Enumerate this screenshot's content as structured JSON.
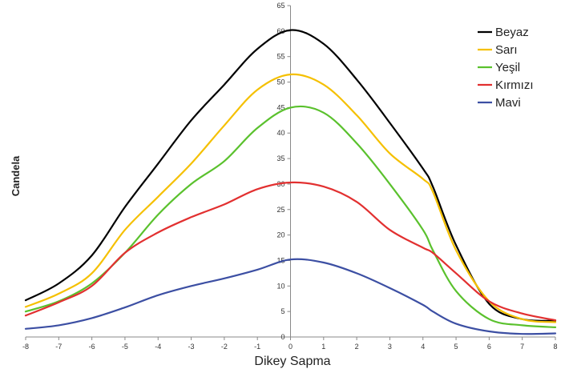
{
  "chart_data": {
    "type": "line",
    "xlabel": "Dikey Sapma",
    "ylabel": "Candela",
    "xlim": [
      -8,
      8
    ],
    "ylim": [
      0,
      65
    ],
    "xticks": [
      -8,
      -7,
      -6,
      -5,
      -4,
      -3,
      -2,
      -1,
      0,
      1,
      2,
      3,
      4,
      5,
      6,
      7,
      8
    ],
    "yticks": [
      0,
      5,
      10,
      15,
      20,
      25,
      30,
      35,
      40,
      45,
      50,
      55,
      60,
      65
    ],
    "grid": false,
    "legend_position": "top-right",
    "x": [
      -8,
      -7,
      -6,
      -5,
      -4,
      -3,
      -2,
      -1,
      0,
      1,
      2,
      3,
      4,
      4.3,
      5,
      6,
      7,
      8
    ],
    "series": [
      {
        "name": "Beyaz",
        "color": "#000000",
        "values": [
          7.2,
          10.5,
          16,
          25.5,
          34,
          42.5,
          49.5,
          56.5,
          60.2,
          57.5,
          50.5,
          42,
          33,
          29.5,
          18,
          6.5,
          3.5,
          3.2
        ]
      },
      {
        "name": "Sarı",
        "color": "#f5c000",
        "values": [
          5.9,
          8.5,
          12.5,
          21,
          27.5,
          34,
          41.5,
          48.5,
          51.5,
          49.5,
          43.5,
          36,
          31,
          28.5,
          17,
          7,
          3.5,
          2.9
        ]
      },
      {
        "name": "Yeşil",
        "color": "#5ac12d",
        "values": [
          5,
          7,
          10.5,
          16.5,
          24,
          30,
          34.5,
          41,
          45,
          44,
          38,
          30,
          21,
          17,
          9,
          3.5,
          2.3,
          1.9
        ]
      },
      {
        "name": "Kırmızı",
        "color": "#e23030",
        "values": [
          4.2,
          6.8,
          10,
          16.5,
          20.5,
          23.5,
          26,
          29,
          30.3,
          29.5,
          26.5,
          21,
          17.5,
          16.5,
          12.5,
          7,
          4.6,
          3.3
        ]
      },
      {
        "name": "Mavi",
        "color": "#3c4fa3",
        "values": [
          1.6,
          2.3,
          3.7,
          5.8,
          8.2,
          10,
          11.5,
          13.2,
          15.2,
          14.6,
          12.5,
          9.6,
          6.3,
          5,
          2.6,
          1.1,
          0.6,
          0.7
        ]
      }
    ]
  }
}
